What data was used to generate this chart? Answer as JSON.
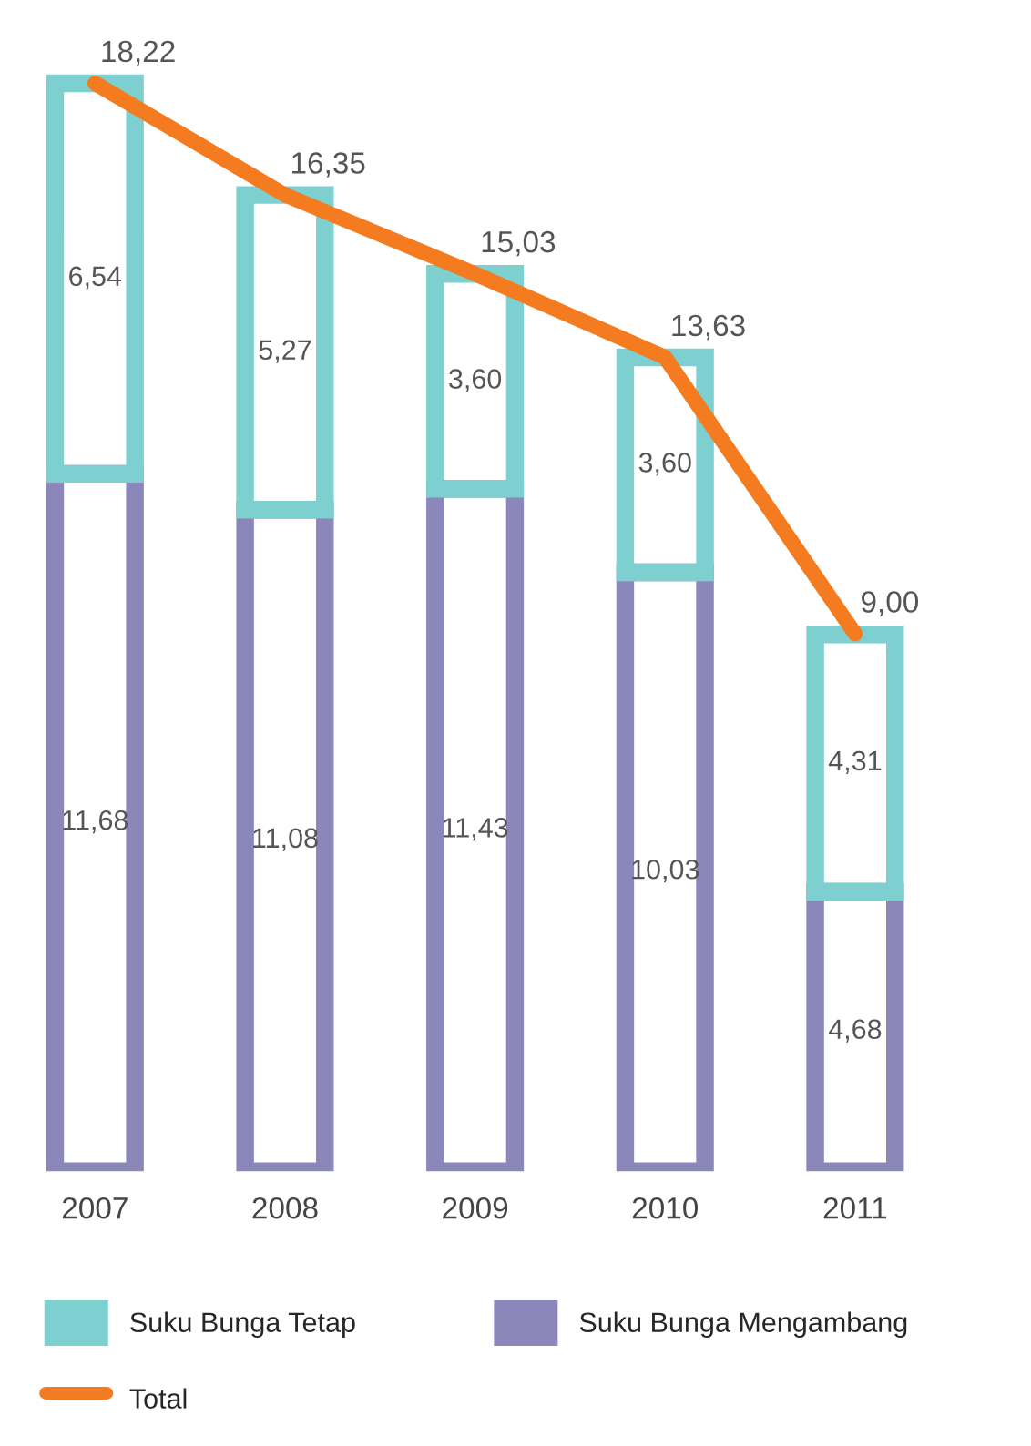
{
  "chart_data": {
    "type": "bar",
    "stacked": true,
    "categories": [
      "2007",
      "2008",
      "2009",
      "2010",
      "2011"
    ],
    "series": [
      {
        "name": "Suku Bunga Mengambang",
        "color": "#8b87bb",
        "values": [
          11.68,
          11.08,
          11.43,
          10.03,
          4.68
        ],
        "value_labels": [
          "11,68",
          "11,08",
          "11,43",
          "10,03",
          "4,68"
        ]
      },
      {
        "name": "Suku Bunga Tetap",
        "color": "#7dcfd0",
        "values": [
          6.54,
          5.27,
          3.6,
          3.6,
          4.31
        ],
        "value_labels": [
          "6,54",
          "5,27",
          "3,60",
          "3,60",
          "4,31"
        ]
      },
      {
        "name": "Total",
        "type": "line",
        "color": "#f47b20",
        "values": [
          18.22,
          16.35,
          15.03,
          13.63,
          9.0
        ],
        "value_labels": [
          "18,22",
          "16,35",
          "15,03",
          "13,63",
          "9,00"
        ]
      }
    ],
    "legend": "bottom",
    "grid": false,
    "tick_labels": "x",
    "marker": "none",
    "line_style": "solid"
  }
}
